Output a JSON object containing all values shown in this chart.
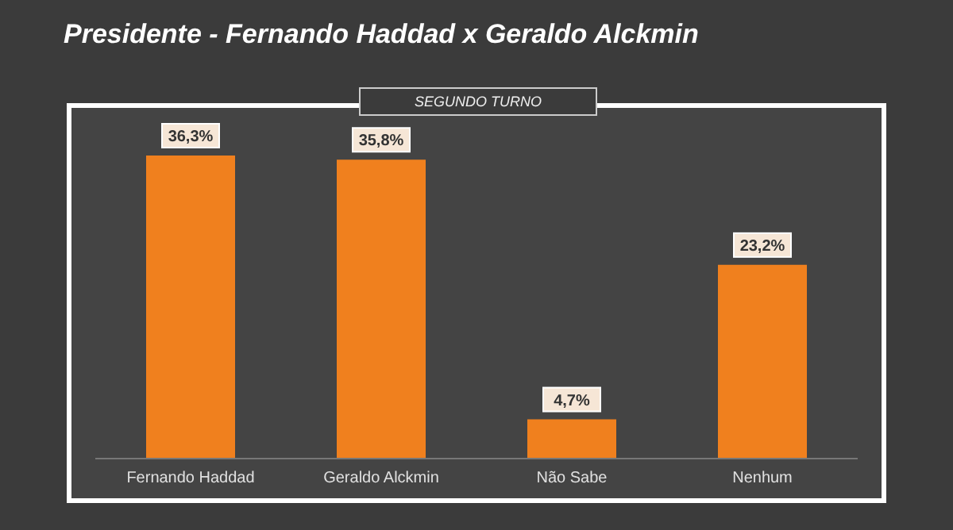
{
  "chart_data": {
    "type": "bar",
    "title": "Presidente - Fernando Haddad x Geraldo Alckmin",
    "subtitle": "SEGUNDO TURNO",
    "categories": [
      "Fernando Haddad",
      "Geraldo Alckmin",
      "Não Sabe",
      "Nenhum"
    ],
    "values": [
      36.3,
      35.8,
      4.7,
      23.2
    ],
    "value_labels": [
      "36,3%",
      "35,8%",
      "4,7%",
      "23,2%"
    ],
    "color": "#f0801e"
  }
}
